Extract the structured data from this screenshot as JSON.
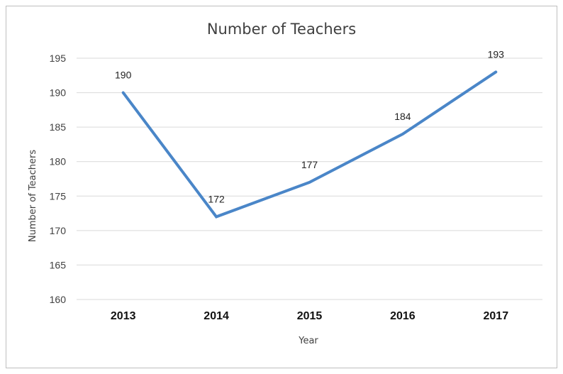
{
  "chart_data": {
    "type": "line",
    "title": "Number of Teachers",
    "xlabel": "Year",
    "ylabel": "Number  of Teachers",
    "categories": [
      "2013",
      "2014",
      "2015",
      "2016",
      "2017"
    ],
    "series": [
      {
        "values": [
          190,
          172,
          177,
          184,
          193
        ]
      }
    ],
    "data_labels": [
      "190",
      "172",
      "177",
      "184",
      "193"
    ],
    "ylim": [
      160,
      195
    ],
    "yticks": [
      "160",
      "165",
      "170",
      "175",
      "180",
      "185",
      "190",
      "195"
    ],
    "grid": true,
    "legend": "none",
    "line_color": "#4a86c8"
  }
}
